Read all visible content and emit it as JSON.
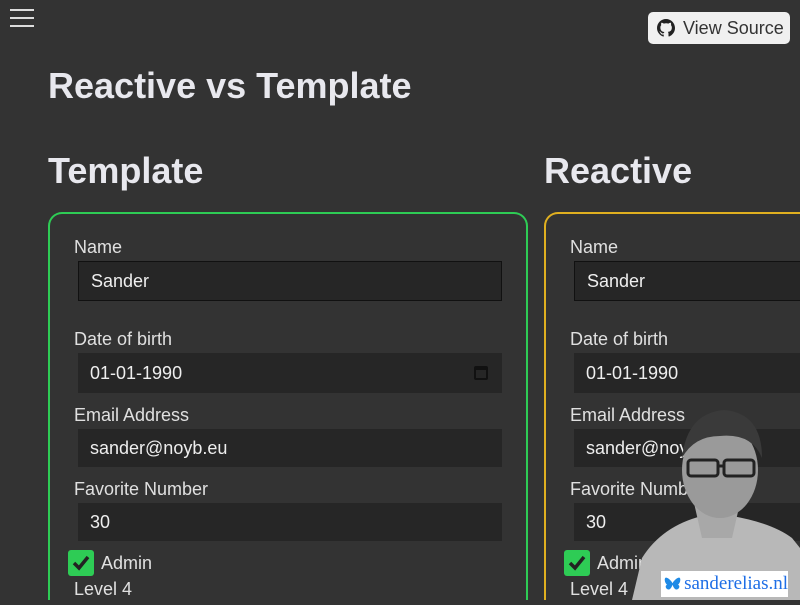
{
  "header": {
    "menu_icon": "hamburger-icon",
    "view_source": "View Source",
    "view_source_icon": "github-icon"
  },
  "page_title": "Reactive vs Template",
  "colors": {
    "template_border": "#2ecc55",
    "reactive_border": "#e0b020",
    "checkbox": "#2ecc55"
  },
  "forms": [
    {
      "title": "Template",
      "name_label": "Name",
      "name": "Sander",
      "dob_label": "Date of birth",
      "dob": "01-01-1990",
      "email_label": "Email Address",
      "email": "sander@noyb.eu",
      "fav_label": "Favorite Number",
      "fav": "30",
      "admin_label": "Admin",
      "admin_checked": true,
      "level": "Level 4"
    },
    {
      "title": "Reactive",
      "name_label": "Name",
      "name": "Sander",
      "dob_label": "Date of birth",
      "dob": "01-01-1990",
      "email_label": "Email Address",
      "email": "sander@noyb.eu",
      "fav_label": "Favorite Number",
      "fav": "30",
      "admin_label": "Admin",
      "admin_checked": true,
      "level": "Level 4"
    }
  ],
  "watermark": {
    "text": "sanderelias.nl",
    "icon": "bluesky-butterfly-icon"
  }
}
